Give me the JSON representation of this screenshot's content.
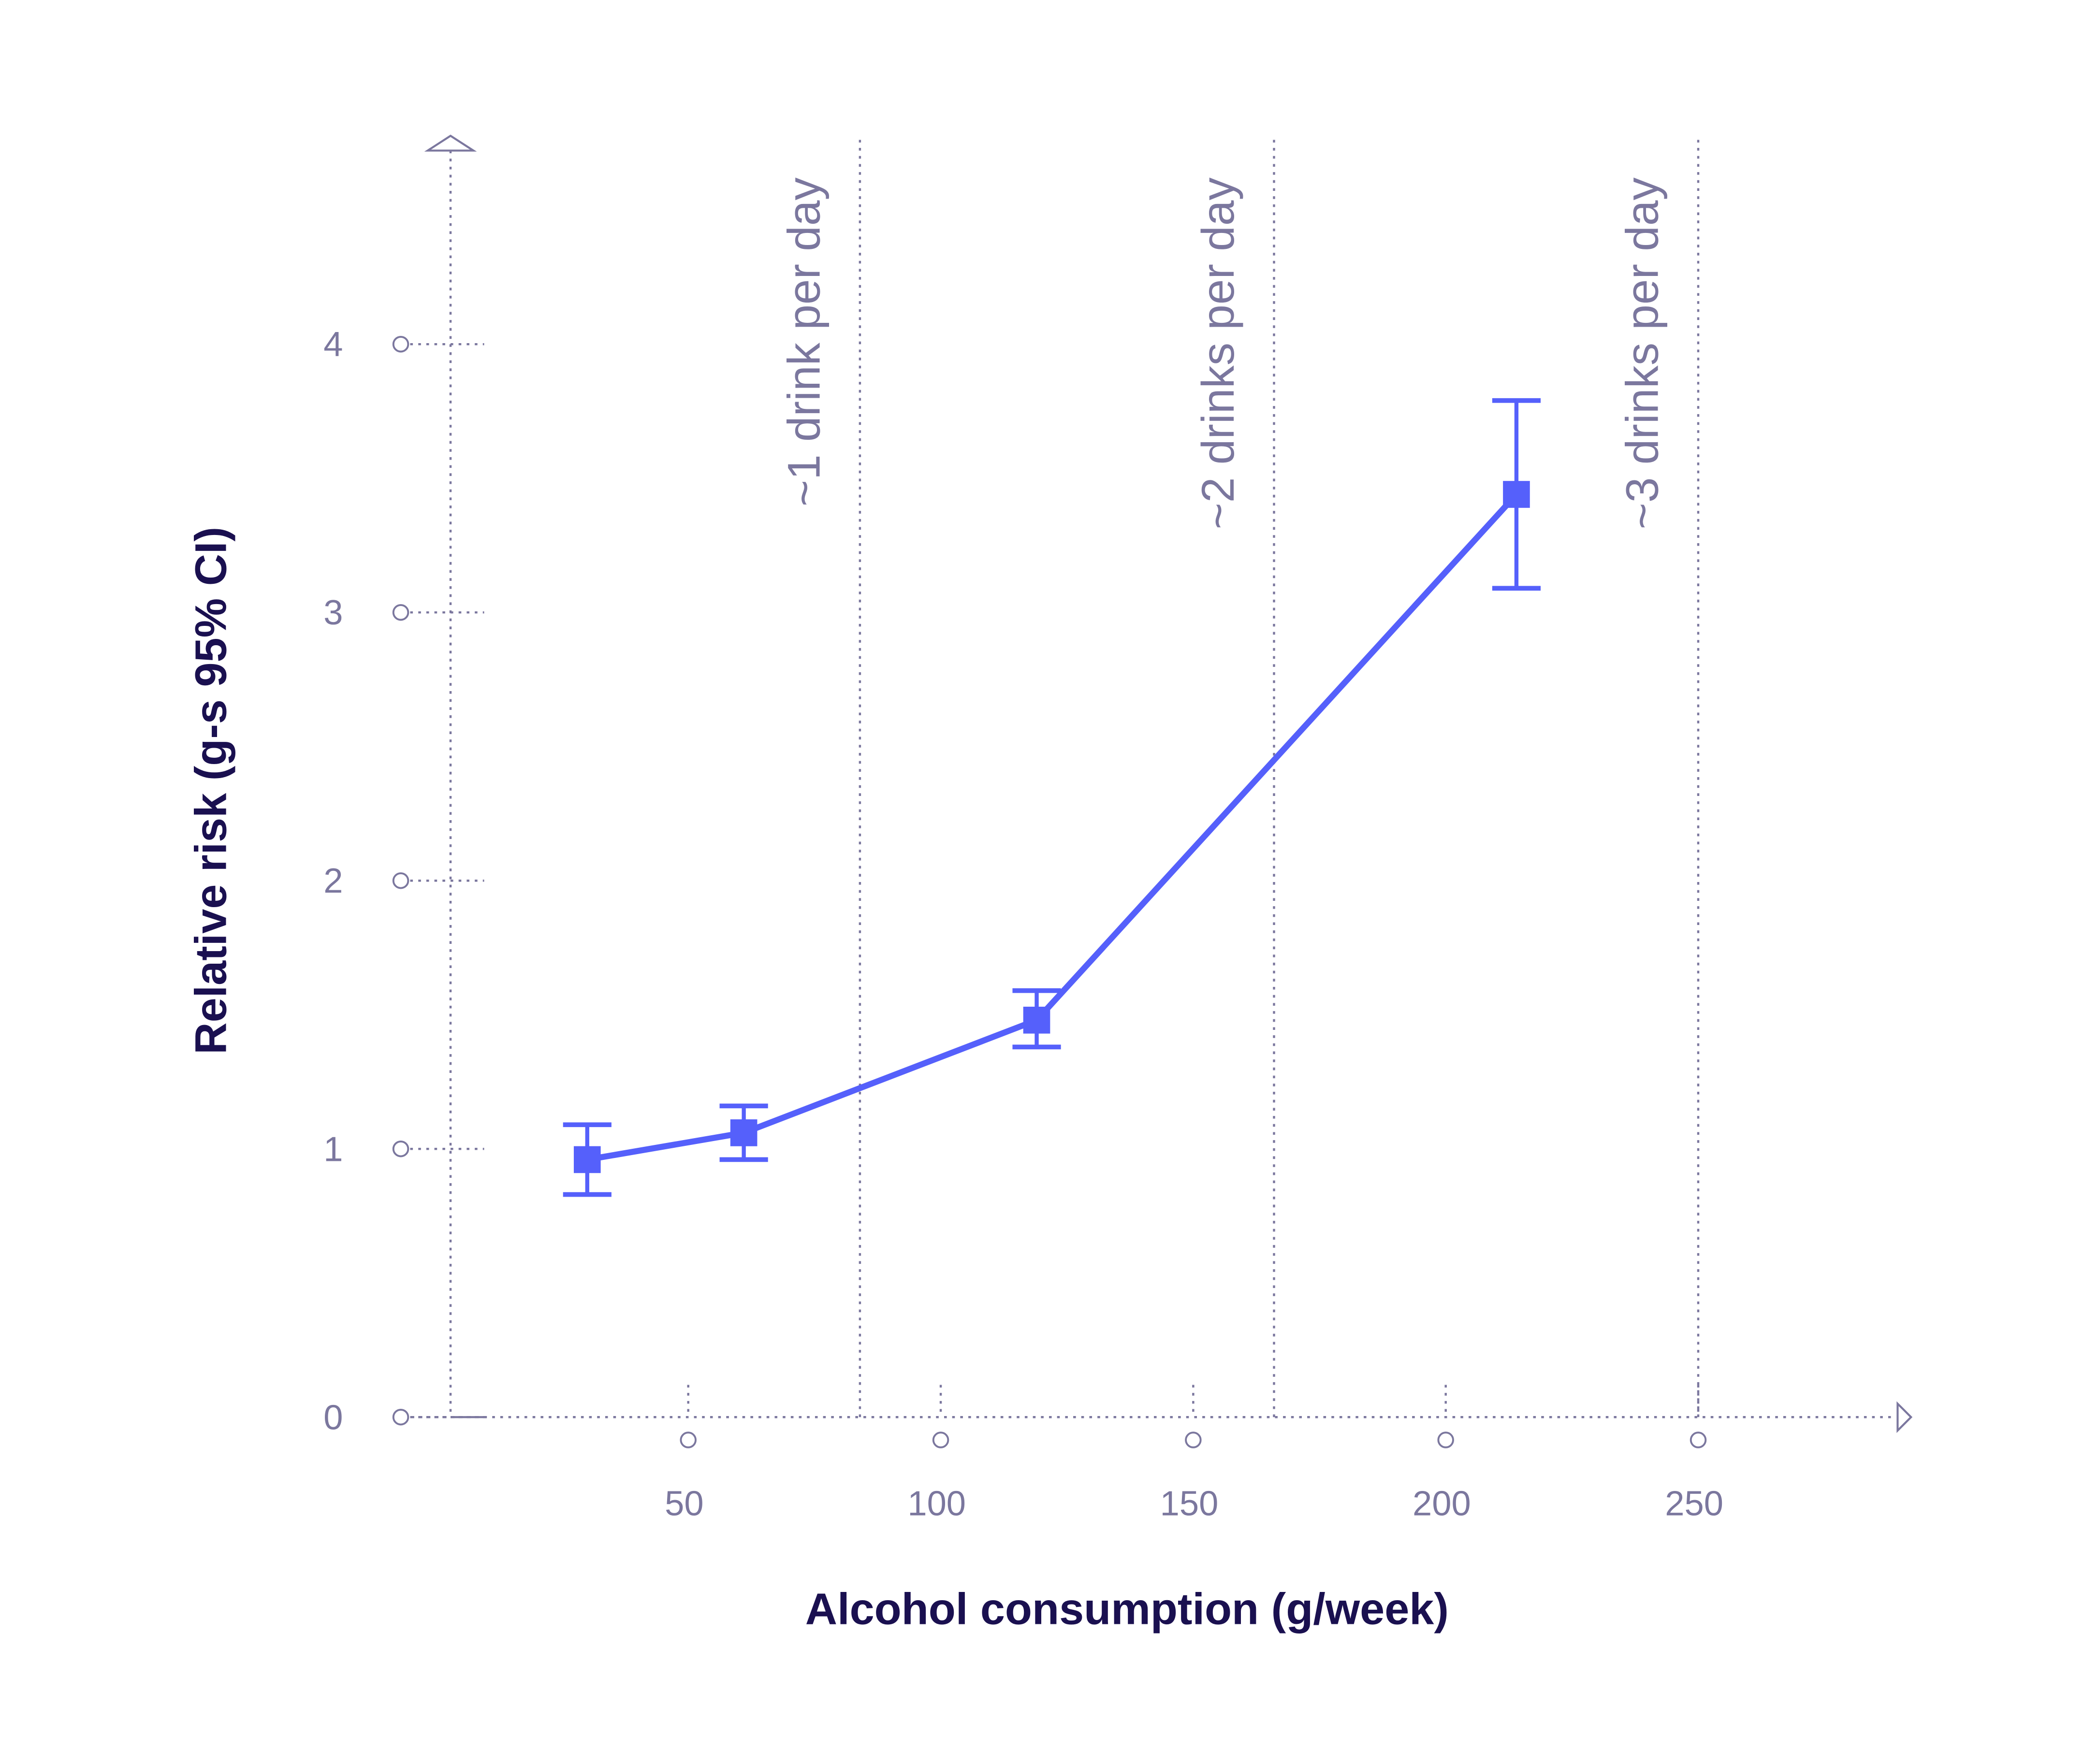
{
  "chart_data": {
    "type": "line",
    "title": "",
    "xlabel": "Alcohol consumption (g/week)",
    "ylabel": "Relative risk (g-s 95% CI)",
    "xlim": [
      0,
      290
    ],
    "ylim": [
      0,
      4.7
    ],
    "x_ticks": [
      50,
      100,
      150,
      200,
      250
    ],
    "y_ticks": [
      0,
      1,
      2,
      3,
      4
    ],
    "grid": false,
    "series": [
      {
        "x": [
          30,
          61,
          119,
          214
        ],
        "y": [
          0.96,
          1.06,
          1.48,
          3.44
        ],
        "ci_low": [
          0.83,
          0.96,
          1.38,
          3.09
        ],
        "ci_high": [
          1.09,
          1.16,
          1.59,
          3.79
        ],
        "color": "#5560fb",
        "marker": "square"
      }
    ],
    "reference_lines": [
      {
        "x": 84,
        "label": "~1  drink per day"
      },
      {
        "x": 166,
        "label": "~2  drinks per day"
      },
      {
        "x": 250,
        "label": "~3  drinks per day"
      }
    ],
    "colors": {
      "series": "#5560fb",
      "axis": "#7b779e",
      "label": "#1a1050"
    }
  }
}
